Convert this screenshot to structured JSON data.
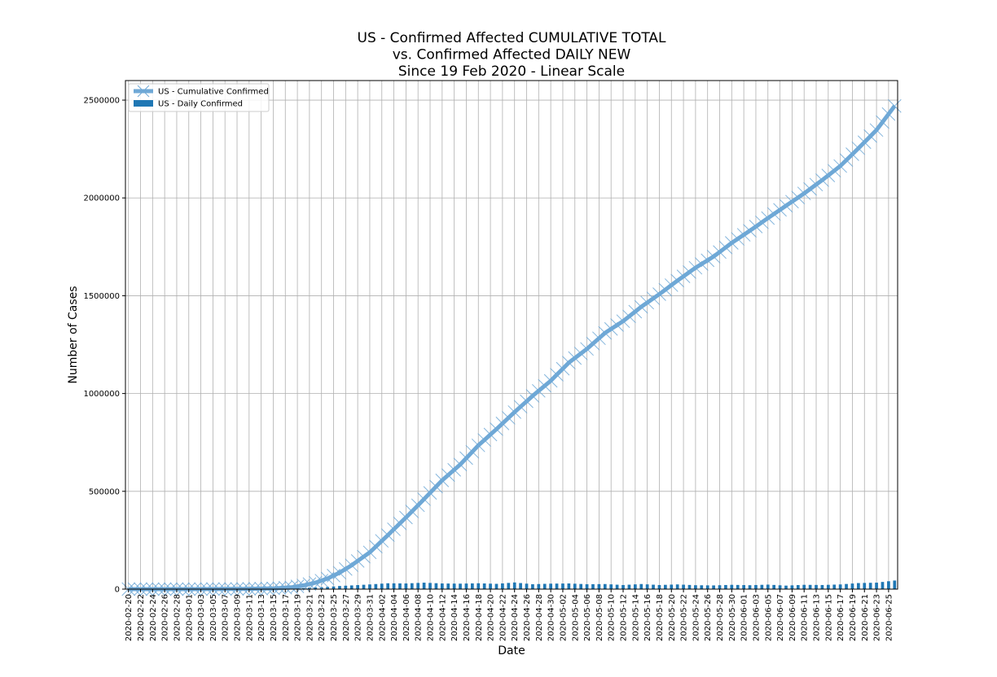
{
  "chart_data": {
    "type": "bar",
    "title": [
      "US - Confirmed Affected CUMULATIVE TOTAL",
      "vs. Confirmed Affected DAILY NEW",
      "Since 19 Feb 2020 - Linear Scale"
    ],
    "xlabel": "Date",
    "ylabel": "Number of Cases",
    "ylim": [
      0,
      2600000
    ],
    "yticks": [
      0,
      500000,
      1000000,
      1500000,
      2000000,
      2500000
    ],
    "ytick_labels": [
      "0",
      "500000",
      "1000000",
      "1500000",
      "2000000",
      "2500000"
    ],
    "grid": true,
    "legend_position": "top-left",
    "x_start": "2020-02-20",
    "x_end": "2020-06-26",
    "x_label_every": 2,
    "series": [
      {
        "name": "US - Cumulative Confirmed",
        "kind": "line",
        "marker": "x",
        "color": "#6fa8d6",
        "keyframes": [
          [
            "2020-02-20",
            15
          ],
          [
            "2020-03-01",
            75
          ],
          [
            "2020-03-10",
            1000
          ],
          [
            "2020-03-15",
            3500
          ],
          [
            "2020-03-18",
            9000
          ],
          [
            "2020-03-20",
            19000
          ],
          [
            "2020-03-22",
            33000
          ],
          [
            "2020-03-24",
            54000
          ],
          [
            "2020-03-26",
            84000
          ],
          [
            "2020-03-28",
            122000
          ],
          [
            "2020-03-31",
            188000
          ],
          [
            "2020-04-03",
            276000
          ],
          [
            "2020-04-06",
            366000
          ],
          [
            "2020-04-09",
            460000
          ],
          [
            "2020-04-12",
            556000
          ],
          [
            "2020-04-15",
            637000
          ],
          [
            "2020-04-18",
            735000
          ],
          [
            "2020-04-21",
            818000
          ],
          [
            "2020-04-24",
            905000
          ],
          [
            "2020-04-27",
            988000
          ],
          [
            "2020-04-30",
            1065000
          ],
          [
            "2020-05-03",
            1158000
          ],
          [
            "2020-05-06",
            1228000
          ],
          [
            "2020-05-09",
            1310000
          ],
          [
            "2020-05-12",
            1370000
          ],
          [
            "2020-05-15",
            1443000
          ],
          [
            "2020-05-18",
            1508000
          ],
          [
            "2020-05-21",
            1577000
          ],
          [
            "2020-05-24",
            1643000
          ],
          [
            "2020-05-27",
            1700000
          ],
          [
            "2020-05-30",
            1770000
          ],
          [
            "2020-06-02",
            1832000
          ],
          [
            "2020-06-05",
            1897000
          ],
          [
            "2020-06-08",
            1960000
          ],
          [
            "2020-06-11",
            2023000
          ],
          [
            "2020-06-14",
            2091000
          ],
          [
            "2020-06-17",
            2163000
          ],
          [
            "2020-06-20",
            2254000
          ],
          [
            "2020-06-23",
            2347000
          ],
          [
            "2020-06-26",
            2470000
          ]
        ]
      },
      {
        "name": "US - Daily Confirmed",
        "kind": "bar",
        "color": "#1f77b4",
        "keyframes": [
          [
            "2020-02-20",
            0
          ],
          [
            "2020-03-01",
            20
          ],
          [
            "2020-03-10",
            300
          ],
          [
            "2020-03-15",
            800
          ],
          [
            "2020-03-18",
            2500
          ],
          [
            "2020-03-20",
            5500
          ],
          [
            "2020-03-22",
            9000
          ],
          [
            "2020-03-24",
            11000
          ],
          [
            "2020-03-26",
            16000
          ],
          [
            "2020-03-28",
            19000
          ],
          [
            "2020-03-31",
            24000
          ],
          [
            "2020-04-03",
            30000
          ],
          [
            "2020-04-06",
            29000
          ],
          [
            "2020-04-09",
            33000
          ],
          [
            "2020-04-12",
            29000
          ],
          [
            "2020-04-15",
            28000
          ],
          [
            "2020-04-18",
            30000
          ],
          [
            "2020-04-21",
            27000
          ],
          [
            "2020-04-24",
            34000
          ],
          [
            "2020-04-27",
            25000
          ],
          [
            "2020-04-30",
            28000
          ],
          [
            "2020-05-03",
            29000
          ],
          [
            "2020-05-06",
            25000
          ],
          [
            "2020-05-09",
            26000
          ],
          [
            "2020-05-12",
            21000
          ],
          [
            "2020-05-15",
            26000
          ],
          [
            "2020-05-18",
            21000
          ],
          [
            "2020-05-21",
            24000
          ],
          [
            "2020-05-24",
            20000
          ],
          [
            "2020-05-27",
            19000
          ],
          [
            "2020-05-30",
            22000
          ],
          [
            "2020-06-02",
            20000
          ],
          [
            "2020-06-05",
            23000
          ],
          [
            "2020-06-08",
            18000
          ],
          [
            "2020-06-11",
            22000
          ],
          [
            "2020-06-14",
            21000
          ],
          [
            "2020-06-17",
            24000
          ],
          [
            "2020-06-20",
            31000
          ],
          [
            "2020-06-23",
            33000
          ],
          [
            "2020-06-26",
            44000
          ]
        ]
      }
    ]
  }
}
